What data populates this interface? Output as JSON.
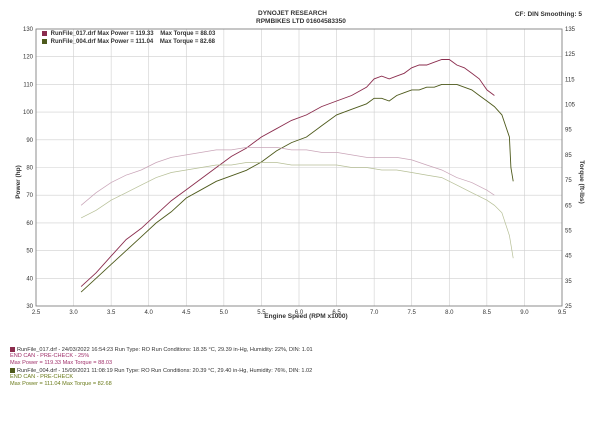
{
  "header": {
    "company": "DYNOJET RESEARCH",
    "subtitle": "RPMBIKES LTD 01604583350",
    "config": "CF: DIN  Smoothing: 5"
  },
  "legend": [
    {
      "file": "RunFile_017.drf",
      "power_label": "Max Power =",
      "power": "119.33",
      "torque_label": "Max Torque =",
      "torque": "88.03",
      "color": "#8b2d4e"
    },
    {
      "file": "RunFile_004.drf",
      "power_label": "Max Power =",
      "power": "111.04",
      "torque_label": "Max Torque =",
      "torque": "82.68",
      "color": "#4e5a1c"
    }
  ],
  "run_info": [
    {
      "line1": "RunFile_017.drf - 24/03/2022 16:54:23   Run Type: RO  Run Conditions: 18.35 °C, 29.39 in-Hg,  Humidity: 22%, DIN: 1.01",
      "line2": "END CAN - PRE-CHECK - 25%",
      "line3": "Max Power = 119.33  Max Torque = 88.03",
      "color": "#c05090"
    },
    {
      "line1": "RunFile_004.drf - 15/09/2021 11:08:19   Run Type: RO  Run Conditions: 20.39 °C, 29.40 in-Hg,  Humidity: 76%, DIN: 1.02",
      "line2": "END CAN - PRE-CHECK",
      "line3": "Max Power = 111.04  Max Torque = 82.68",
      "color": "#8a9a2a"
    }
  ],
  "chart_data": {
    "type": "line",
    "title": "DYNOJET RESEARCH",
    "xlabel": "Engine Speed (RPM x1000)",
    "ylabel": "Power (hp)",
    "y2label": "Torque (ft-lbs)",
    "xlim": [
      2.5,
      9.5
    ],
    "ylim": [
      30,
      130
    ],
    "y2lim": [
      25,
      135
    ],
    "xticks": [
      "2.5",
      "3.0",
      "3.5",
      "4.0",
      "4.5",
      "5.0",
      "5.5",
      "6.0",
      "6.5",
      "7.0",
      "7.5",
      "8.0",
      "8.5",
      "9.0",
      "9.5"
    ],
    "yticks": [
      "30",
      "40",
      "50",
      "60",
      "70",
      "80",
      "90",
      "100",
      "110",
      "120",
      "130"
    ],
    "y2ticks": [
      "25",
      "35",
      "45",
      "55",
      "65",
      "75",
      "85",
      "95",
      "105",
      "115",
      "125",
      "135"
    ],
    "grid": true,
    "series": [
      {
        "name": "RunFile_017.drf",
        "kind": "power",
        "axis": "left",
        "color": "#8b2d4e",
        "x": [
          3.1,
          3.3,
          3.5,
          3.7,
          3.9,
          4.1,
          4.3,
          4.5,
          4.7,
          4.9,
          5.1,
          5.3,
          5.5,
          5.7,
          5.9,
          6.1,
          6.3,
          6.5,
          6.7,
          6.9,
          7.0,
          7.1,
          7.2,
          7.3,
          7.4,
          7.5,
          7.6,
          7.7,
          7.8,
          7.9,
          8.0,
          8.1,
          8.2,
          8.3,
          8.4,
          8.5,
          8.6
        ],
        "y": [
          37,
          42,
          48,
          54,
          58,
          63,
          68,
          72,
          76,
          80,
          84,
          87,
          91,
          94,
          97,
          99,
          102,
          104,
          106,
          109,
          112,
          113,
          112,
          113,
          114,
          116,
          117,
          117,
          118,
          119,
          119,
          117,
          116,
          114,
          112,
          108,
          106
        ]
      },
      {
        "name": "RunFile_004.drf",
        "kind": "power",
        "axis": "left",
        "color": "#4e5a1c",
        "x": [
          3.1,
          3.3,
          3.5,
          3.7,
          3.9,
          4.1,
          4.3,
          4.5,
          4.7,
          4.9,
          5.1,
          5.3,
          5.5,
          5.7,
          5.9,
          6.1,
          6.3,
          6.5,
          6.7,
          6.9,
          7.0,
          7.1,
          7.2,
          7.3,
          7.4,
          7.5,
          7.6,
          7.7,
          7.8,
          7.9,
          8.0,
          8.1,
          8.2,
          8.3,
          8.4,
          8.5,
          8.6,
          8.7,
          8.8,
          8.82,
          8.85
        ],
        "y": [
          35,
          40,
          45,
          50,
          55,
          60,
          64,
          69,
          72,
          75,
          77,
          79,
          82,
          86,
          89,
          91,
          95,
          99,
          101,
          103,
          105,
          105,
          104,
          106,
          107,
          108,
          108,
          109,
          109,
          110,
          110,
          110,
          109,
          108,
          106,
          104,
          102,
          99,
          91,
          80,
          75
        ]
      },
      {
        "name": "RunFile_017.drf",
        "kind": "torque",
        "axis": "right",
        "color": "#c9a5b8",
        "x": [
          3.1,
          3.3,
          3.5,
          3.7,
          3.9,
          4.1,
          4.3,
          4.5,
          4.7,
          4.9,
          5.1,
          5.3,
          5.5,
          5.7,
          5.9,
          6.1,
          6.3,
          6.5,
          6.7,
          6.9,
          7.1,
          7.3,
          7.5,
          7.7,
          7.9,
          8.1,
          8.3,
          8.5,
          8.6
        ],
        "y": [
          65,
          70,
          74,
          77,
          79,
          82,
          84,
          85,
          86,
          87,
          87,
          88,
          88,
          88,
          87,
          87,
          86,
          86,
          85,
          84,
          84,
          84,
          83,
          81,
          79,
          76,
          74,
          71,
          69
        ]
      },
      {
        "name": "RunFile_004.drf",
        "kind": "torque",
        "axis": "right",
        "color": "#b6bf96",
        "x": [
          3.1,
          3.3,
          3.5,
          3.7,
          3.9,
          4.1,
          4.3,
          4.5,
          4.7,
          4.9,
          5.1,
          5.3,
          5.5,
          5.7,
          5.9,
          6.1,
          6.3,
          6.5,
          6.7,
          6.9,
          7.1,
          7.3,
          7.5,
          7.7,
          7.9,
          8.1,
          8.3,
          8.5,
          8.6,
          8.7,
          8.8,
          8.85
        ],
        "y": [
          60,
          63,
          67,
          70,
          73,
          76,
          78,
          79,
          80,
          81,
          81,
          82,
          82,
          82,
          81,
          81,
          81,
          81,
          80,
          80,
          79,
          79,
          78,
          77,
          76,
          73,
          70,
          67,
          65,
          62,
          53,
          44
        ]
      }
    ]
  }
}
